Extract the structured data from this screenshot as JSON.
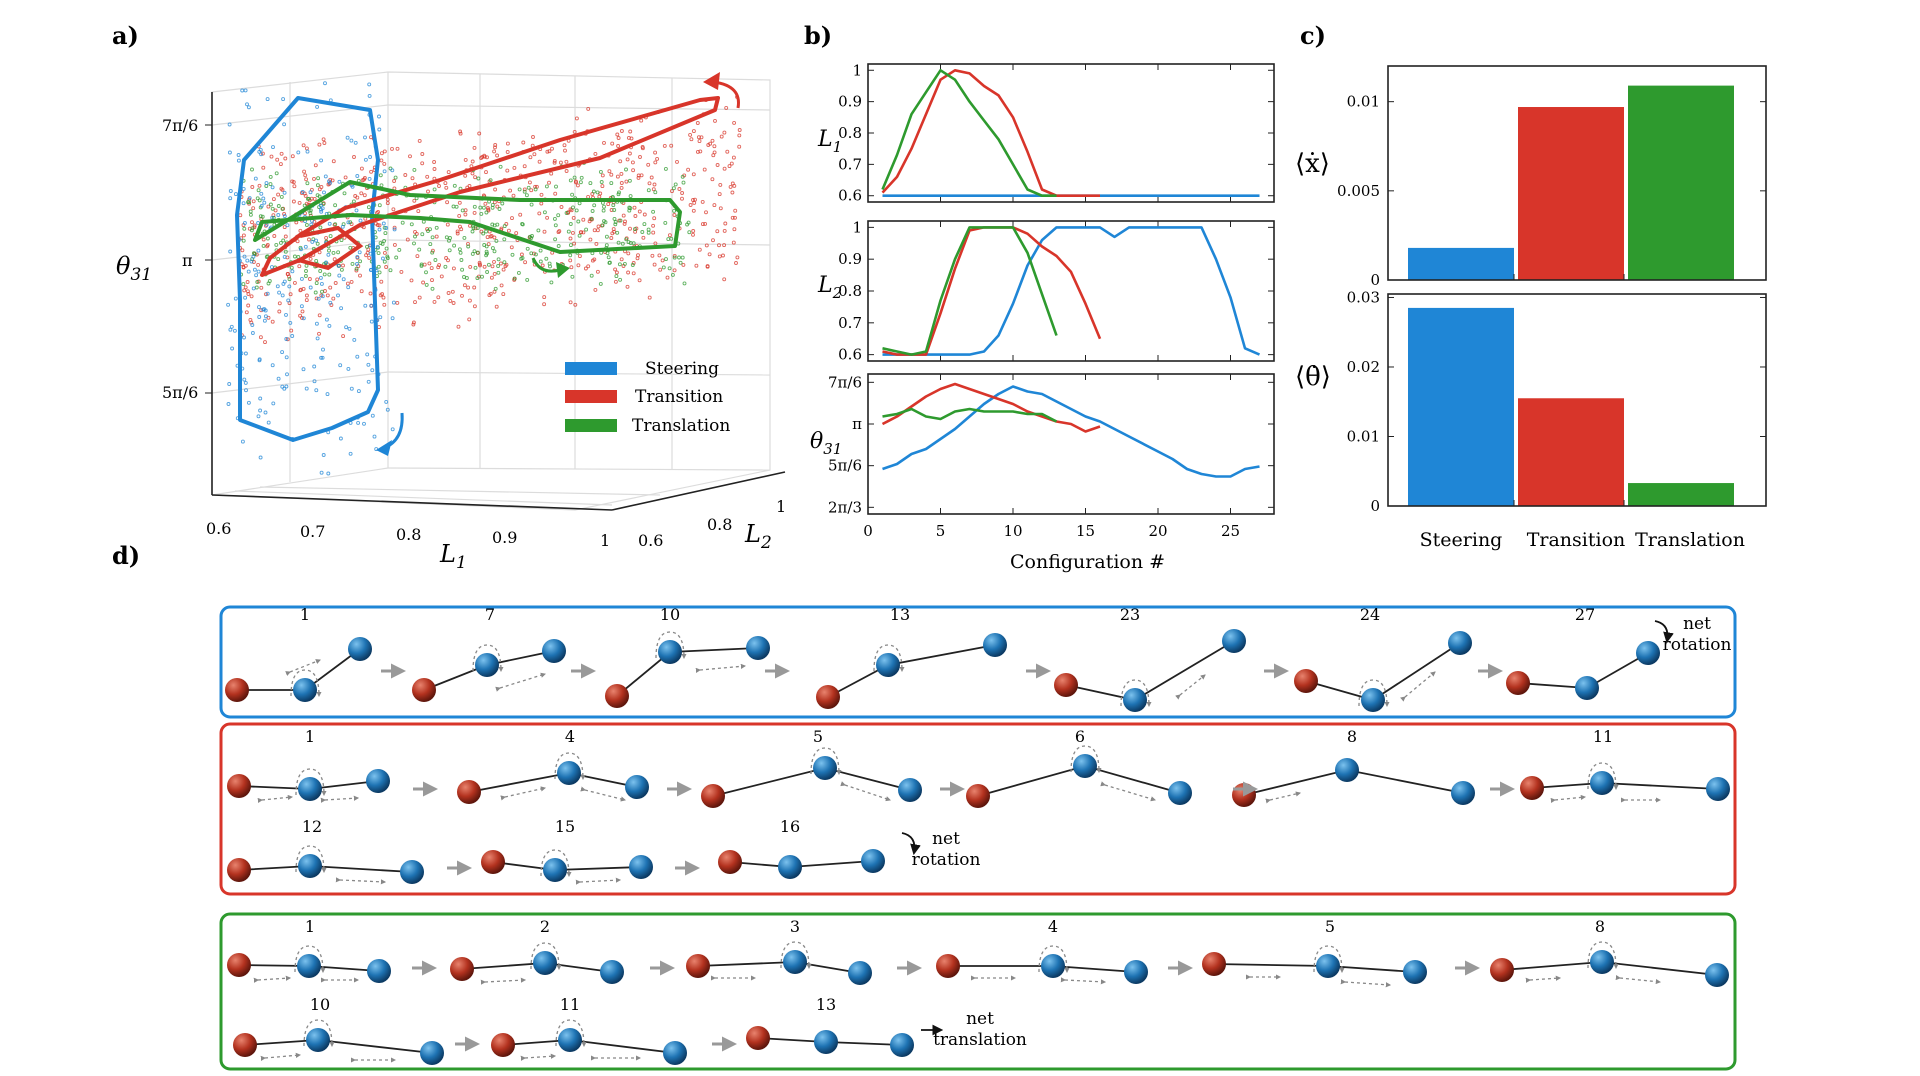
{
  "colors": {
    "steering": "#1f86d6",
    "transition": "#d8352a",
    "translation": "#2e9a2e",
    "red_ball": "#b3321f",
    "blue_ball": "#1e73b3",
    "panel_grey": "#888888"
  },
  "panel_labels": {
    "a": "a)",
    "b": "b)",
    "c": "c)",
    "d": "d)"
  },
  "legend": [
    "Steering",
    "Transition",
    "Translation"
  ],
  "panel_a": {
    "xlabel": "L",
    "xsub": "1",
    "ylabel": "L",
    "ysub": "2",
    "zlabel": "θ",
    "zsub": "31",
    "x_ticks": [
      "0.6",
      "0.7",
      "0.8",
      "0.9",
      "1"
    ],
    "y_ticks": [
      "0.6",
      "0.8",
      "1"
    ],
    "z_ticks": [
      "7π/6",
      "π",
      "5π/6"
    ]
  },
  "chart_data": [
    {
      "type": "line",
      "panel": "b-L1",
      "ylabel": "L1",
      "xlim": [
        0,
        28
      ],
      "ylim": [
        0.58,
        1.02
      ],
      "y_ticks": [
        "1",
        "0.9",
        "0.8",
        "0.7",
        "0.6"
      ],
      "series": [
        {
          "name": "Steering",
          "x": [
            1,
            27
          ],
          "values": [
            0.6,
            0.6
          ]
        },
        {
          "name": "Transition",
          "x": [
            1,
            2,
            3,
            4,
            5,
            6,
            7,
            8,
            9,
            10,
            11,
            12,
            13,
            14,
            15,
            16
          ],
          "values": [
            0.61,
            0.66,
            0.75,
            0.86,
            0.97,
            1.0,
            0.99,
            0.95,
            0.92,
            0.85,
            0.74,
            0.62,
            0.6,
            0.6,
            0.6,
            0.6
          ]
        },
        {
          "name": "Translation",
          "x": [
            1,
            2,
            3,
            4,
            5,
            6,
            7,
            8,
            9,
            10,
            11,
            12,
            13
          ],
          "values": [
            0.62,
            0.73,
            0.86,
            0.93,
            1.0,
            0.97,
            0.9,
            0.84,
            0.78,
            0.7,
            0.62,
            0.6,
            0.6
          ]
        }
      ]
    },
    {
      "type": "line",
      "panel": "b-L2",
      "ylabel": "L2",
      "xlim": [
        0,
        28
      ],
      "ylim": [
        0.58,
        1.02
      ],
      "y_ticks": [
        "1",
        "0.9",
        "0.8",
        "0.7",
        "0.6"
      ],
      "series": [
        {
          "name": "Steering",
          "x": [
            1,
            2,
            3,
            4,
            5,
            6,
            7,
            8,
            9,
            10,
            11,
            12,
            13,
            14,
            15,
            16,
            17,
            18,
            19,
            20,
            21,
            22,
            23,
            24,
            25,
            26,
            27
          ],
          "values": [
            0.6,
            0.6,
            0.6,
            0.6,
            0.6,
            0.6,
            0.6,
            0.61,
            0.66,
            0.76,
            0.88,
            0.96,
            1.0,
            1.0,
            1.0,
            1.0,
            0.97,
            1.0,
            1.0,
            1.0,
            1.0,
            1.0,
            1.0,
            0.9,
            0.78,
            0.62,
            0.6
          ]
        },
        {
          "name": "Transition",
          "x": [
            1,
            2,
            3,
            4,
            5,
            6,
            7,
            8,
            9,
            10,
            11,
            12,
            13,
            14,
            15,
            16
          ],
          "values": [
            0.61,
            0.6,
            0.6,
            0.6,
            0.73,
            0.87,
            0.99,
            1.0,
            1.0,
            1.0,
            0.98,
            0.94,
            0.91,
            0.86,
            0.76,
            0.65
          ]
        },
        {
          "name": "Translation",
          "x": [
            1,
            2,
            3,
            4,
            5,
            6,
            7,
            8,
            9,
            10,
            11,
            12,
            13
          ],
          "values": [
            0.62,
            0.61,
            0.6,
            0.61,
            0.77,
            0.9,
            1.0,
            1.0,
            1.0,
            1.0,
            0.92,
            0.79,
            0.66
          ]
        }
      ]
    },
    {
      "type": "line",
      "panel": "b-theta31",
      "ylabel": "θ31",
      "xlabel": "Configuration #",
      "xlim": [
        0,
        28
      ],
      "ylim": [
        0.64,
        1.2
      ],
      "x_ticks": [
        0,
        5,
        10,
        15,
        20,
        25
      ],
      "y_ticks_units_pi": [
        1.1667,
        1.0,
        0.8333,
        0.6667
      ],
      "y_ticks": [
        "7π/6",
        "π",
        "5π/6",
        "2π/3"
      ],
      "series": [
        {
          "name": "Steering",
          "x": [
            1,
            2,
            3,
            4,
            5,
            6,
            7,
            8,
            9,
            10,
            11,
            12,
            13,
            14,
            15,
            16,
            17,
            18,
            19,
            20,
            21,
            22,
            23,
            24,
            25,
            26,
            27
          ],
          "values": [
            0.82,
            0.84,
            0.88,
            0.9,
            0.94,
            0.98,
            1.03,
            1.08,
            1.12,
            1.15,
            1.13,
            1.12,
            1.09,
            1.06,
            1.03,
            1.01,
            0.98,
            0.95,
            0.92,
            0.89,
            0.86,
            0.82,
            0.8,
            0.79,
            0.79,
            0.82,
            0.83
          ]
        },
        {
          "name": "Transition",
          "x": [
            1,
            2,
            3,
            4,
            5,
            6,
            7,
            8,
            9,
            10,
            11,
            12,
            13,
            14,
            15,
            16
          ],
          "values": [
            1.0,
            1.03,
            1.07,
            1.11,
            1.14,
            1.16,
            1.14,
            1.12,
            1.1,
            1.08,
            1.05,
            1.03,
            1.01,
            1.0,
            0.97,
            0.99
          ]
        },
        {
          "name": "Translation",
          "x": [
            1,
            2,
            3,
            4,
            5,
            6,
            7,
            8,
            9,
            10,
            11,
            12,
            13
          ],
          "values": [
            1.03,
            1.04,
            1.06,
            1.03,
            1.02,
            1.05,
            1.06,
            1.05,
            1.05,
            1.05,
            1.04,
            1.04,
            1.01
          ]
        }
      ]
    },
    {
      "type": "bar",
      "panel": "c-xdot",
      "ylabel": "⟨ẋ⟩",
      "categories": [
        "Steering",
        "Transition",
        "Translation"
      ],
      "values": [
        0.0018,
        0.0097,
        0.0109
      ],
      "ylim": [
        0,
        0.012
      ],
      "y_ticks": [
        0,
        0.005,
        0.01
      ],
      "y_tick_labels": [
        "0",
        "0.005",
        "0.01"
      ]
    },
    {
      "type": "bar",
      "panel": "c-thetadot",
      "ylabel": "⟨θ̇⟩",
      "categories": [
        "Steering",
        "Transition",
        "Translation"
      ],
      "values": [
        0.0285,
        0.0155,
        0.0033
      ],
      "ylim": [
        0,
        0.0305
      ],
      "y_ticks": [
        0,
        0.01,
        0.02,
        0.03
      ],
      "y_tick_labels": [
        "0",
        "0.01",
        "0.02",
        "0.03"
      ]
    }
  ],
  "panel_d": {
    "steering": {
      "frames": [
        "1",
        "7",
        "10",
        "13",
        "23",
        "24",
        "27"
      ],
      "note": [
        "net",
        "rotation"
      ]
    },
    "transition_row1": {
      "frames": [
        "1",
        "4",
        "5",
        "6",
        "8",
        "11"
      ]
    },
    "transition_row2": {
      "frames": [
        "12",
        "15",
        "16"
      ],
      "note": [
        "net",
        "rotation"
      ]
    },
    "translation_row1": {
      "frames": [
        "1",
        "2",
        "3",
        "4",
        "5",
        "8"
      ]
    },
    "translation_row2": {
      "frames": [
        "10",
        "11",
        "13"
      ],
      "note": [
        "net",
        "translation"
      ]
    }
  }
}
